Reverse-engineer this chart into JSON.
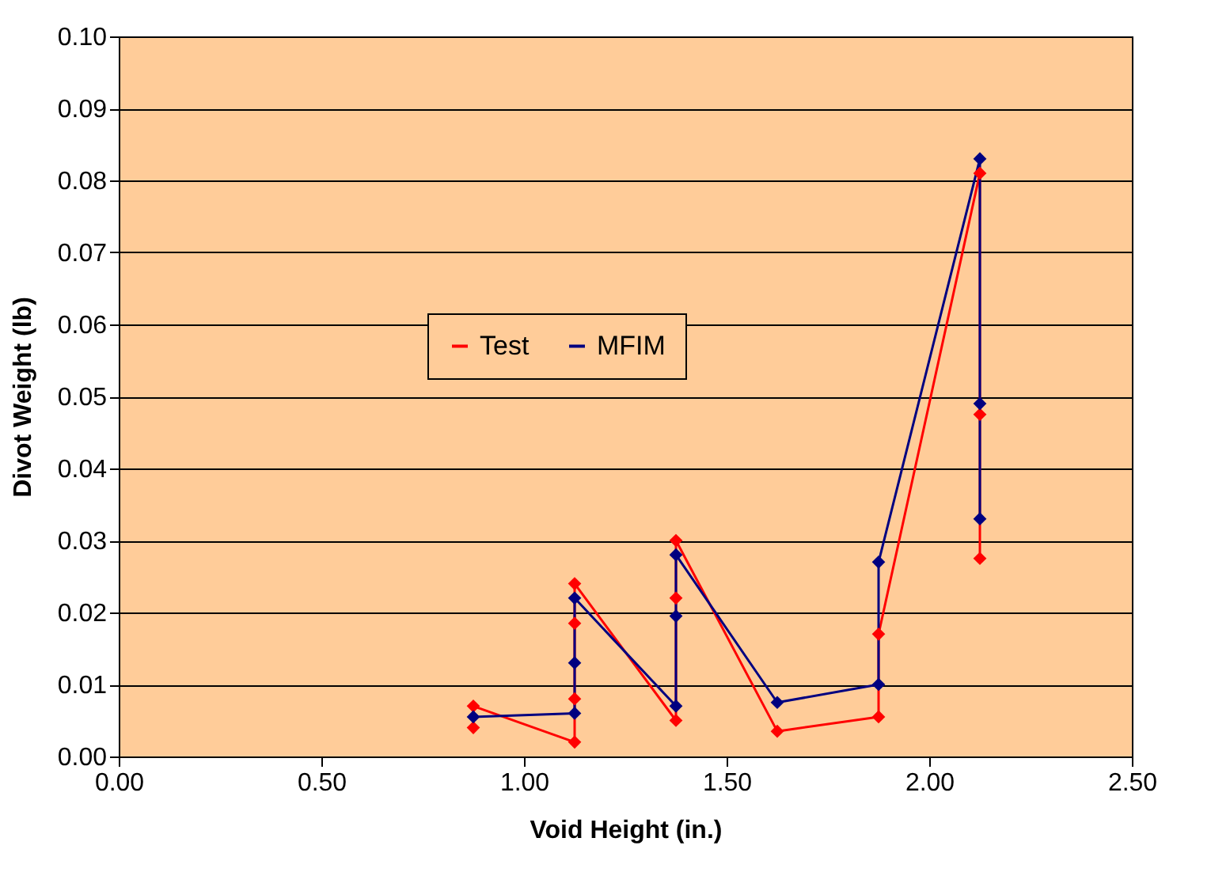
{
  "chart_data": {
    "type": "line",
    "xlabel": "Void Height (in.)",
    "ylabel": "Divot Weight (lb)",
    "xlim": [
      0,
      2.5
    ],
    "xticks": [
      {
        "value": 0,
        "label": "0.00"
      },
      {
        "value": 0.5,
        "label": "0.50"
      },
      {
        "value": 1,
        "label": "1.00"
      },
      {
        "value": 1.5,
        "label": "1.50"
      },
      {
        "value": 2,
        "label": "2.00"
      },
      {
        "value": 2.5,
        "label": "2.50"
      }
    ],
    "ylim": [
      0,
      0.1
    ],
    "yticks": [
      {
        "value": 0,
        "label": "0.00"
      },
      {
        "value": 0.01,
        "label": "0.01"
      },
      {
        "value": 0.02,
        "label": "0.02"
      },
      {
        "value": 0.03,
        "label": "0.03"
      },
      {
        "value": 0.04,
        "label": "0.04"
      },
      {
        "value": 0.05,
        "label": "0.05"
      },
      {
        "value": 0.06,
        "label": "0.06"
      },
      {
        "value": 0.07,
        "label": "0.07"
      },
      {
        "value": 0.08,
        "label": "0.08"
      },
      {
        "value": 0.09,
        "label": "0.09"
      },
      {
        "value": 0.1,
        "label": "0.10"
      }
    ],
    "grid": "y",
    "legend": "center",
    "marker": "diamond",
    "line_style": "solid",
    "series": [
      {
        "name": "Test",
        "color": "#ff0000",
        "x": [
          0.875,
          0.875,
          1.125,
          1.125,
          1.125,
          1.125,
          1.375,
          1.375,
          1.375,
          1.625,
          1.875,
          1.875,
          2.125,
          2.125,
          2.125
        ],
        "values": [
          0.004,
          0.007,
          0.002,
          0.008,
          0.0185,
          0.024,
          0.005,
          0.022,
          0.03,
          0.0035,
          0.0055,
          0.017,
          0.081,
          0.0475,
          0.0275
        ]
      },
      {
        "name": "MFIM",
        "color": "#000080",
        "x": [
          0.875,
          1.125,
          1.125,
          1.125,
          1.375,
          1.375,
          1.375,
          1.625,
          1.875,
          1.875,
          2.125,
          2.125,
          2.125
        ],
        "values": [
          0.0055,
          0.006,
          0.013,
          0.022,
          0.007,
          0.0195,
          0.028,
          0.0075,
          0.01,
          0.027,
          0.083,
          0.049,
          0.033
        ]
      }
    ]
  }
}
